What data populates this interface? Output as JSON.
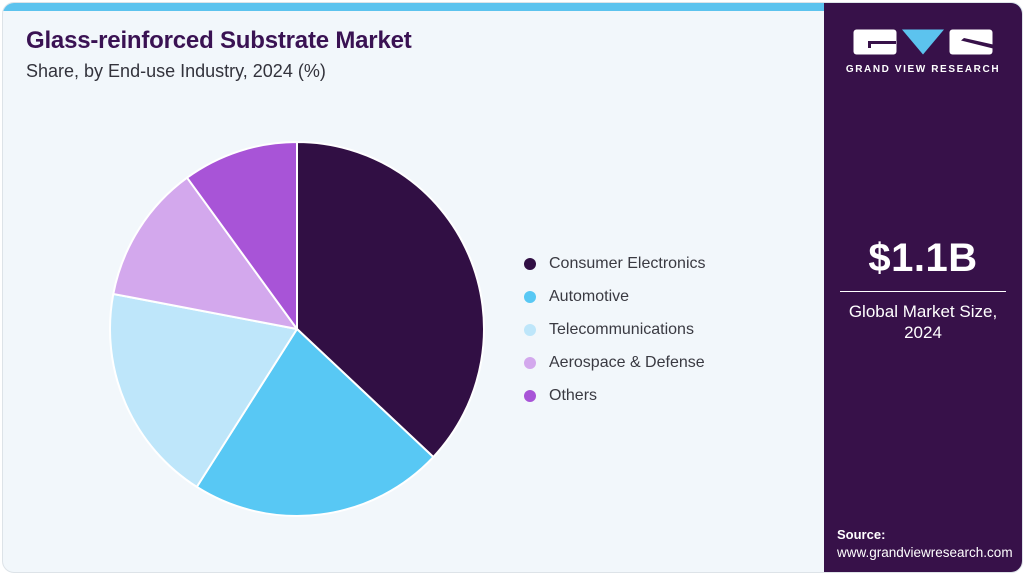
{
  "header": {
    "title": "Glass-reinforced Substrate Market",
    "subtitle": "Share, by End-use Industry, 2024 (%)"
  },
  "chart_data": {
    "type": "pie",
    "title": "Glass-reinforced Substrate Market Share, by End-use Industry, 2024 (%)",
    "unit": "%",
    "start_angle_deg_from_top_clockwise": 0,
    "data_labels_visible": false,
    "legend_position": "right",
    "slices": [
      {
        "label": "Consumer Electronics",
        "value": 37,
        "color": "#310f44"
      },
      {
        "label": "Automotive",
        "value": 22,
        "color": "#58c8f4"
      },
      {
        "label": "Telecommunications",
        "value": 19,
        "color": "#bee6fa"
      },
      {
        "label": "Aerospace & Defense",
        "value": 12,
        "color": "#d3a8ed"
      },
      {
        "label": "Others",
        "value": 10,
        "color": "#a854d7"
      }
    ]
  },
  "sidebar": {
    "logo_icon": "gvr-logo",
    "brand_name": "GRAND VIEW RESEARCH",
    "market_size_value": "$1.1B",
    "market_size_caption": "Global Market Size, 2024",
    "source_label": "Source:",
    "source_url": "www.grandviewresearch.com"
  },
  "colors": {
    "card_background": "#f2f7fb",
    "top_strip_blue": "#5cc3ee",
    "sidebar_purple": "#371149",
    "title_purple": "#3a1253",
    "slice_stroke_white": "#ffffff",
    "logo_block_white": "#ffffff",
    "logo_triangle_blue": "#5cc3ee"
  }
}
